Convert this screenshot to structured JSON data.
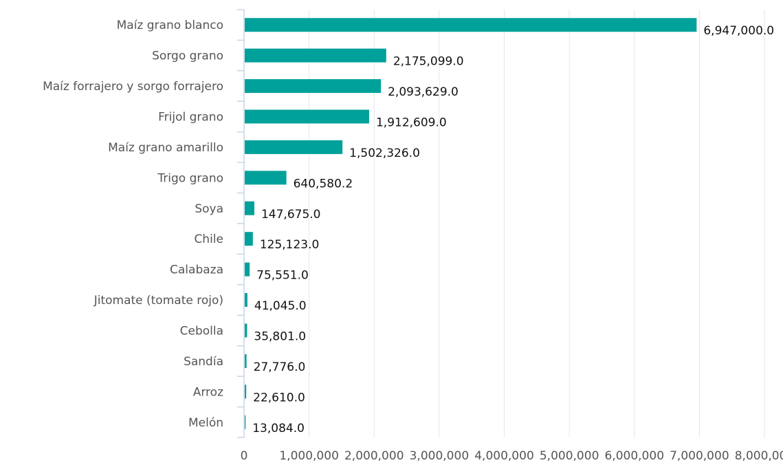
{
  "chart_data": {
    "type": "bar",
    "orientation": "horizontal",
    "categories": [
      "Maíz grano blanco",
      "Sorgo grano",
      "Maíz forrajero y sorgo forrajero",
      "Frijol grano",
      "Maíz grano amarillo",
      "Trigo grano",
      "Soya",
      "Chile",
      "Calabaza",
      "Jitomate (tomate rojo)",
      "Cebolla",
      "Sandía",
      "Arroz",
      "Melón"
    ],
    "values": [
      6947000,
      2175099,
      2093629,
      1912609,
      1502326,
      640580.2,
      147675,
      125123,
      75551,
      41045,
      35801,
      27776,
      22610,
      13084
    ],
    "value_labels": [
      "6,947,000.0",
      "2,175,099.0",
      "2,093,629.0",
      "1,912,609.0",
      "1,502,326.0",
      "640,580.2",
      "147,675.0",
      "125,123.0",
      "75,551.0",
      "41,045.0",
      "35,801.0",
      "27,776.0",
      "22,610.0",
      "13,084.0"
    ],
    "xlim": [
      0,
      8000000
    ],
    "xticks": [
      0,
      1000000,
      2000000,
      3000000,
      4000000,
      5000000,
      6000000,
      7000000,
      8000000
    ],
    "xtick_labels": [
      "0",
      "1,000,000",
      "2,000,000",
      "3,000,000",
      "4,000,000",
      "5,000,000",
      "6,000,000",
      "7,000,000",
      "8,000,000"
    ],
    "grid": true,
    "bar_color": "#00a19a",
    "title": "",
    "xlabel": "",
    "ylabel": ""
  }
}
